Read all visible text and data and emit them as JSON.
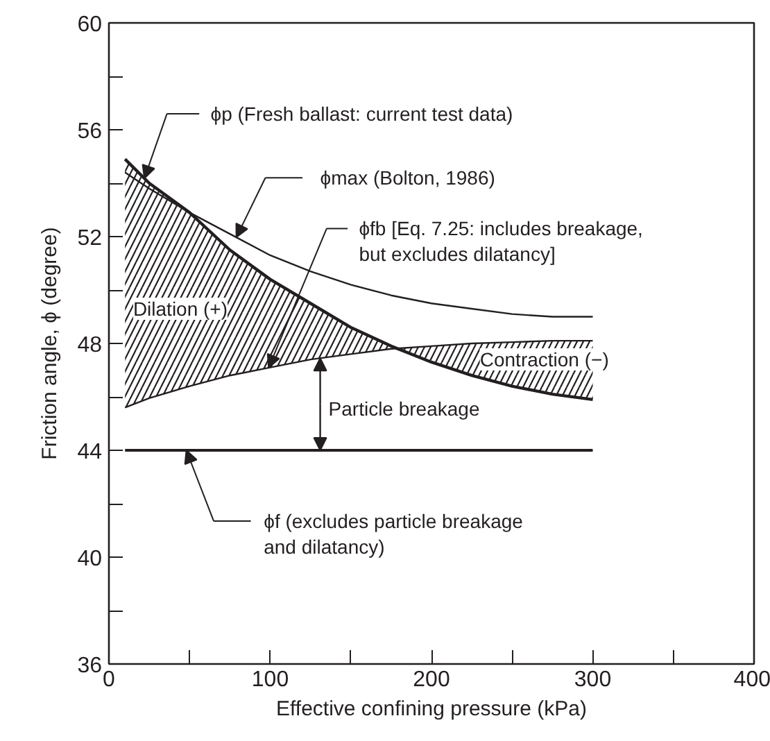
{
  "chart_data": {
    "type": "line",
    "xlabel": "Effective confining pressure (kPa)",
    "ylabel": "Friction angle, ϕ (degree)",
    "xlim": [
      0,
      400
    ],
    "ylim": [
      36,
      60
    ],
    "xticks": [
      0,
      {
        "value": 50,
        "label": null
      },
      100,
      {
        "value": 150,
        "label": null
      },
      200,
      {
        "value": 250,
        "label": null
      },
      300,
      {
        "value": 350,
        "label": null
      },
      400
    ],
    "yticks": [
      36,
      {
        "value": 38,
        "label": null
      },
      40,
      {
        "value": 42,
        "label": null
      },
      44,
      {
        "value": 46,
        "label": null
      },
      48,
      {
        "value": 50,
        "label": null
      },
      52,
      {
        "value": 54,
        "label": null
      },
      56,
      {
        "value": 58,
        "label": null
      },
      60
    ],
    "grid": false,
    "marker": "none",
    "line_style": "solid",
    "x": [
      10,
      25,
      50,
      75,
      100,
      125,
      150,
      175,
      200,
      225,
      250,
      275,
      300
    ],
    "series": [
      {
        "color": "#231f20",
        "values": [
          54.9,
          54.0,
          52.9,
          51.5,
          50.4,
          49.5,
          48.6,
          47.9,
          47.3,
          46.8,
          46.4,
          46.1,
          45.9
        ],
        "lower": [
          45.6,
          45.95,
          46.4,
          46.8,
          47.1,
          47.4,
          47.6,
          47.8,
          47.9,
          48.0,
          48.05,
          48.1,
          48.1
        ],
        "upper": [
          54.9,
          54.0,
          52.9,
          51.5,
          50.4,
          49.5,
          48.6,
          47.9,
          47.3,
          46.8,
          46.4,
          46.1,
          45.9
        ]
      },
      {
        "color": "#231f20",
        "values": [
          54.4,
          53.8,
          52.9,
          52.1,
          51.3,
          50.7,
          50.2,
          49.8,
          49.5,
          49.3,
          49.1,
          49.0,
          49.0
        ]
      },
      {
        "color": "#231f20",
        "values": [
          45.6,
          45.95,
          46.4,
          46.8,
          47.1,
          47.4,
          47.6,
          47.8,
          47.9,
          48.0,
          48.05,
          48.1,
          48.1
        ]
      },
      {
        "color": "#231f20",
        "values": [
          44,
          44,
          44,
          44,
          44,
          44,
          44,
          44,
          44,
          44,
          44,
          44,
          44
        ]
      }
    ],
    "annotations": [
      "ϕp (Fresh ballast: current test data)",
      "ϕmax (Bolton, 1986)",
      "ϕfb [Eq. 7.25: includes breakage,\nbut excludes dilatancy]",
      "ϕf (excludes particle breakage\nand dilatancy)",
      {
        "text": "Particle breakage",
        "x": 131,
        "y": 44
      },
      "Dilation (+)",
      "Contraction (−)"
    ]
  }
}
